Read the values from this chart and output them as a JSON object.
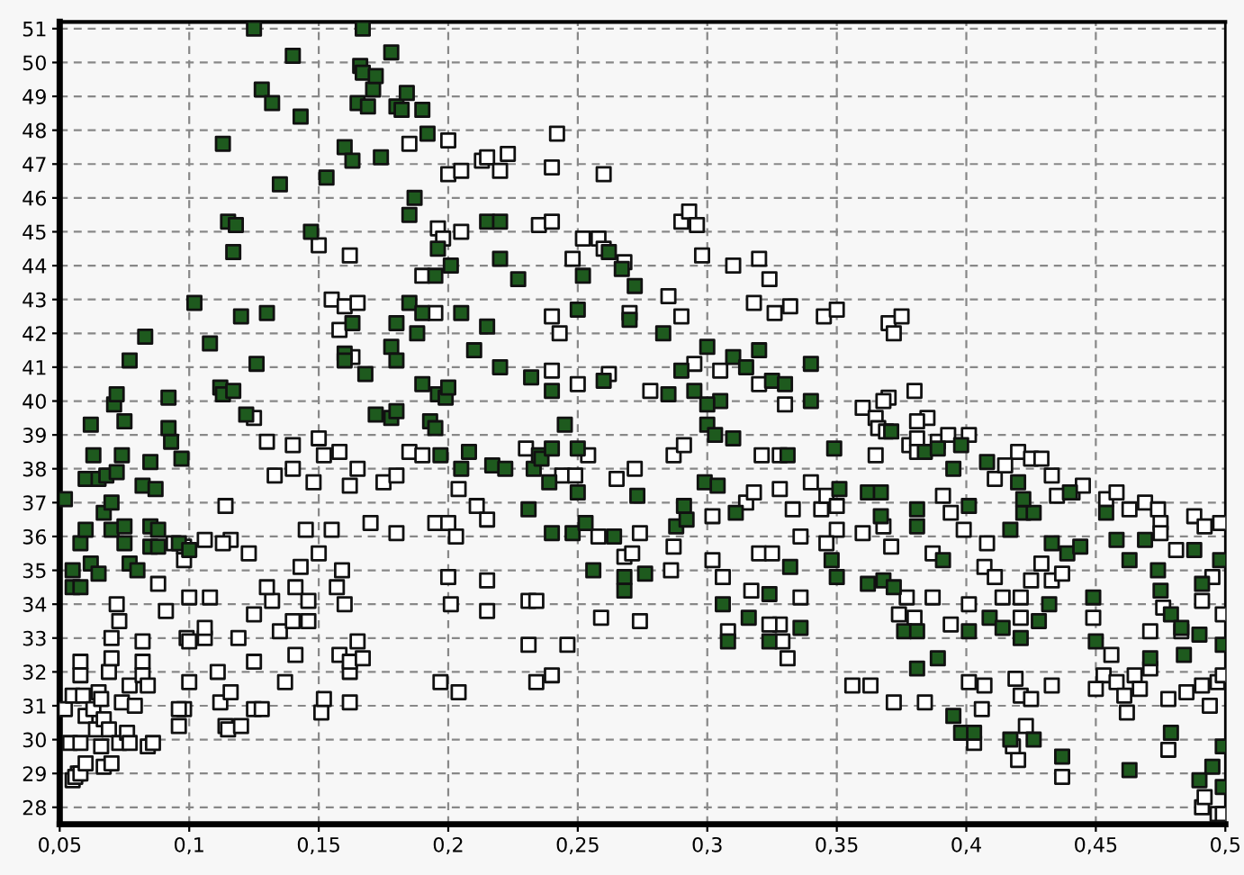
{
  "chart_data": {
    "type": "scatter",
    "marker": "square",
    "grid": true,
    "xlim": [
      0.05,
      0.5
    ],
    "ylim": [
      27.5,
      51.2
    ],
    "xticks": [
      {
        "value": 0.05,
        "label": "0,05"
      },
      {
        "value": 0.1,
        "label": "0,1"
      },
      {
        "value": 0.15,
        "label": "0,15"
      },
      {
        "value": 0.2,
        "label": "0,2"
      },
      {
        "value": 0.25,
        "label": "0,25"
      },
      {
        "value": 0.3,
        "label": "0,3"
      },
      {
        "value": 0.35,
        "label": "0,35"
      },
      {
        "value": 0.4,
        "label": "0,4"
      },
      {
        "value": 0.45,
        "label": "0,45"
      },
      {
        "value": 0.5,
        "label": "0,5"
      }
    ],
    "yticks": [
      28,
      29,
      30,
      31,
      32,
      33,
      34,
      35,
      36,
      37,
      38,
      39,
      40,
      41,
      42,
      43,
      44,
      45,
      46,
      47,
      48,
      49,
      50,
      51
    ],
    "series": [
      {
        "color": "#ffffff",
        "x": [
          0.052,
          0.057,
          0.055,
          0.056,
          0.054,
          0.058,
          0.058,
          0.06,
          0.055,
          0.059,
          0.058,
          0.058,
          0.06,
          0.063,
          0.064,
          0.065,
          0.066,
          0.067,
          0.066,
          0.067,
          0.07,
          0.069,
          0.069,
          0.07,
          0.07,
          0.072,
          0.073,
          0.073,
          0.076,
          0.077,
          0.074,
          0.079,
          0.077,
          0.082,
          0.082,
          0.082,
          0.084,
          0.086,
          0.084,
          0.088,
          0.091,
          0.094,
          0.098,
          0.098,
          0.1,
          0.099,
          0.1,
          0.106,
          0.106,
          0.108,
          0.1,
          0.111,
          0.112,
          0.098,
          0.096,
          0.096,
          0.114,
          0.115,
          0.12,
          0.116,
          0.125,
          0.128,
          0.125,
          0.125,
          0.132,
          0.135,
          0.137,
          0.14,
          0.141,
          0.141,
          0.146,
          0.146,
          0.143,
          0.151,
          0.152,
          0.157,
          0.159,
          0.158,
          0.162,
          0.162,
          0.167,
          0.165,
          0.16,
          0.162,
          0.114,
          0.116,
          0.113,
          0.106,
          0.123,
          0.119,
          0.13,
          0.125,
          0.13,
          0.14,
          0.14,
          0.133,
          0.148,
          0.152,
          0.158,
          0.162,
          0.165,
          0.175,
          0.18,
          0.17,
          0.18,
          0.185,
          0.19,
          0.195,
          0.155,
          0.15,
          0.145,
          0.15,
          0.162,
          0.155,
          0.16,
          0.165,
          0.158,
          0.163,
          0.15,
          0.185,
          0.2,
          0.2,
          0.205,
          0.213,
          0.196,
          0.198,
          0.205,
          0.19,
          0.195,
          0.215,
          0.22,
          0.223,
          0.242,
          0.24,
          0.26,
          0.235,
          0.24,
          0.248,
          0.252,
          0.258,
          0.26,
          0.268,
          0.27,
          0.24,
          0.243,
          0.29,
          0.293,
          0.296,
          0.298,
          0.31,
          0.32,
          0.324,
          0.318,
          0.326,
          0.332,
          0.345,
          0.35,
          0.37,
          0.372,
          0.375,
          0.285,
          0.29,
          0.24,
          0.25,
          0.262,
          0.278,
          0.295,
          0.305,
          0.32,
          0.33,
          0.36,
          0.378,
          0.385,
          0.38,
          0.37,
          0.204,
          0.211,
          0.2,
          0.203,
          0.215,
          0.2,
          0.201,
          0.215,
          0.215,
          0.231,
          0.234,
          0.231,
          0.246,
          0.234,
          0.24,
          0.197,
          0.204,
          0.259,
          0.274,
          0.258,
          0.268,
          0.271,
          0.274,
          0.286,
          0.287,
          0.23,
          0.244,
          0.249,
          0.254,
          0.265,
          0.272,
          0.287,
          0.291,
          0.302,
          0.302,
          0.306,
          0.308,
          0.317,
          0.32,
          0.325,
          0.321,
          0.328,
          0.315,
          0.318,
          0.328,
          0.333,
          0.336,
          0.34,
          0.336,
          0.328,
          0.324,
          0.329,
          0.331,
          0.344,
          0.346,
          0.35,
          0.35,
          0.346,
          0.356,
          0.36,
          0.368,
          0.365,
          0.366,
          0.369,
          0.381,
          0.381,
          0.389,
          0.393,
          0.401,
          0.381,
          0.368,
          0.371,
          0.365,
          0.391,
          0.394,
          0.399,
          0.408,
          0.387,
          0.407,
          0.411,
          0.377,
          0.387,
          0.374,
          0.38,
          0.394,
          0.401,
          0.414,
          0.421,
          0.421,
          0.363,
          0.372,
          0.384,
          0.401,
          0.407,
          0.406,
          0.403,
          0.419,
          0.421,
          0.425,
          0.433,
          0.42,
          0.418,
          0.423,
          0.437,
          0.42,
          0.425,
          0.429,
          0.433,
          0.411,
          0.415,
          0.435,
          0.441,
          0.445,
          0.454,
          0.458,
          0.463,
          0.469,
          0.474,
          0.475,
          0.475,
          0.488,
          0.492,
          0.498,
          0.481,
          0.429,
          0.433,
          0.437,
          0.425,
          0.449,
          0.471,
          0.476,
          0.483,
          0.491,
          0.495,
          0.499,
          0.456,
          0.453,
          0.458,
          0.461,
          0.465,
          0.467,
          0.471,
          0.478,
          0.485,
          0.491,
          0.494,
          0.497,
          0.499,
          0.45,
          0.462,
          0.478,
          0.491,
          0.497,
          0.499,
          0.492
        ],
        "values": [
          30.9,
          29.0,
          28.8,
          28.9,
          29.9,
          29.9,
          29.0,
          29.3,
          31.3,
          31.3,
          32.3,
          31.9,
          30.7,
          30.9,
          30.3,
          31.4,
          31.2,
          30.6,
          29.8,
          29.2,
          29.3,
          30.3,
          32.0,
          33.0,
          32.4,
          34.0,
          33.5,
          29.9,
          30.2,
          29.9,
          31.1,
          31.0,
          31.6,
          32.9,
          32.3,
          31.9,
          29.8,
          29.9,
          31.6,
          34.6,
          33.8,
          35.8,
          35.7,
          35.3,
          34.2,
          33.0,
          32.9,
          33.0,
          33.3,
          34.2,
          31.7,
          32.0,
          31.1,
          30.9,
          30.9,
          30.4,
          30.4,
          30.3,
          30.4,
          31.4,
          30.9,
          30.9,
          33.7,
          32.3,
          34.1,
          33.2,
          31.7,
          33.5,
          34.5,
          32.5,
          33.5,
          34.1,
          35.1,
          30.8,
          31.2,
          34.5,
          35.0,
          32.5,
          32.0,
          32.3,
          32.4,
          32.9,
          34.0,
          31.1,
          36.9,
          35.9,
          35.8,
          35.9,
          35.5,
          33.0,
          34.5,
          39.5,
          38.8,
          38.7,
          38.0,
          37.8,
          37.6,
          38.4,
          38.5,
          37.5,
          38.0,
          37.6,
          37.8,
          36.4,
          36.1,
          38.5,
          38.4,
          36.4,
          36.2,
          35.5,
          36.2,
          44.6,
          44.3,
          43.0,
          42.8,
          42.9,
          42.1,
          41.3,
          38.9,
          47.6,
          47.7,
          46.7,
          46.8,
          47.1,
          45.1,
          44.8,
          45.0,
          43.7,
          42.6,
          47.2,
          46.8,
          47.3,
          47.9,
          46.9,
          46.7,
          45.2,
          45.3,
          44.2,
          44.8,
          44.8,
          44.5,
          44.1,
          42.6,
          42.5,
          42.0,
          45.3,
          45.6,
          45.2,
          44.3,
          44.0,
          44.2,
          43.6,
          42.9,
          42.6,
          42.8,
          42.5,
          42.7,
          42.3,
          42.0,
          42.5,
          43.1,
          42.5,
          40.9,
          40.5,
          40.8,
          40.3,
          41.1,
          40.9,
          40.5,
          39.9,
          39.8,
          38.7,
          39.5,
          40.3,
          40.1,
          37.4,
          36.9,
          36.4,
          36.0,
          36.5,
          34.8,
          34.0,
          34.7,
          33.8,
          34.1,
          34.1,
          32.8,
          32.8,
          31.7,
          31.9,
          31.7,
          31.4,
          33.6,
          33.5,
          36.0,
          35.4,
          35.5,
          36.1,
          35.0,
          35.7,
          38.6,
          37.8,
          37.8,
          38.4,
          37.7,
          38.0,
          38.4,
          38.7,
          36.6,
          35.3,
          34.8,
          33.2,
          34.4,
          35.5,
          35.5,
          38.4,
          38.4,
          37.0,
          37.3,
          37.4,
          36.8,
          36.0,
          37.6,
          34.2,
          33.4,
          33.4,
          32.9,
          32.4,
          36.8,
          37.2,
          36.9,
          36.2,
          35.8,
          31.6,
          36.1,
          40.0,
          39.5,
          39.2,
          39.1,
          39.4,
          38.9,
          38.8,
          39.0,
          39.0,
          38.5,
          36.3,
          35.7,
          38.4,
          37.2,
          36.7,
          36.2,
          35.8,
          35.5,
          35.1,
          34.8,
          34.2,
          34.2,
          33.7,
          33.6,
          33.4,
          34.0,
          34.2,
          34.2,
          33.6,
          31.6,
          31.1,
          31.1,
          31.7,
          31.6,
          30.9,
          29.9,
          31.8,
          31.3,
          31.2,
          31.6,
          29.4,
          29.8,
          30.4,
          28.9,
          38.5,
          38.3,
          38.3,
          37.8,
          37.7,
          38.1,
          37.2,
          37.3,
          37.5,
          37.1,
          37.3,
          36.8,
          37.0,
          36.8,
          36.4,
          36.1,
          36.6,
          36.3,
          36.4,
          35.6,
          35.2,
          34.7,
          34.9,
          34.7,
          33.6,
          33.2,
          33.9,
          33.2,
          34.1,
          34.8,
          33.7,
          32.5,
          31.9,
          31.7,
          31.3,
          31.9,
          31.5,
          32.1,
          31.2,
          31.4,
          31.6,
          31.0,
          31.7,
          31.9,
          31.5,
          30.8,
          29.7,
          28.0,
          27.8,
          27.8,
          28.3
        ]
      },
      {
        "color": "#1e5a1e",
        "x": [
          0.052,
          0.055,
          0.058,
          0.055,
          0.058,
          0.06,
          0.062,
          0.065,
          0.06,
          0.065,
          0.067,
          0.07,
          0.068,
          0.072,
          0.07,
          0.075,
          0.075,
          0.077,
          0.08,
          0.082,
          0.085,
          0.087,
          0.085,
          0.088,
          0.085,
          0.088,
          0.093,
          0.097,
          0.096,
          0.1,
          0.063,
          0.074,
          0.075,
          0.071,
          0.072,
          0.077,
          0.083,
          0.092,
          0.092,
          0.062,
          0.102,
          0.108,
          0.112,
          0.113,
          0.117,
          0.115,
          0.118,
          0.117,
          0.113,
          0.12,
          0.13,
          0.126,
          0.122,
          0.128,
          0.132,
          0.125,
          0.14,
          0.143,
          0.147,
          0.153,
          0.135,
          0.16,
          0.163,
          0.165,
          0.166,
          0.167,
          0.167,
          0.169,
          0.171,
          0.172,
          0.174,
          0.178,
          0.18,
          0.182,
          0.184,
          0.19,
          0.192,
          0.187,
          0.185,
          0.16,
          0.16,
          0.163,
          0.168,
          0.172,
          0.178,
          0.18,
          0.18,
          0.185,
          0.19,
          0.188,
          0.19,
          0.193,
          0.195,
          0.196,
          0.199,
          0.2,
          0.196,
          0.195,
          0.201,
          0.205,
          0.178,
          0.18,
          0.215,
          0.22,
          0.22,
          0.227,
          0.215,
          0.21,
          0.22,
          0.232,
          0.24,
          0.245,
          0.25,
          0.25,
          0.233,
          0.235,
          0.25,
          0.252,
          0.262,
          0.267,
          0.272,
          0.27,
          0.283,
          0.26,
          0.285,
          0.29,
          0.295,
          0.305,
          0.3,
          0.31,
          0.3,
          0.3,
          0.31,
          0.315,
          0.32,
          0.325,
          0.33,
          0.34,
          0.34,
          0.197,
          0.205,
          0.208,
          0.217,
          0.222,
          0.231,
          0.236,
          0.24,
          0.239,
          0.24,
          0.248,
          0.253,
          0.256,
          0.264,
          0.268,
          0.268,
          0.276,
          0.273,
          0.288,
          0.291,
          0.292,
          0.299,
          0.304,
          0.306,
          0.308,
          0.311,
          0.316,
          0.324,
          0.324,
          0.332,
          0.336,
          0.331,
          0.349,
          0.351,
          0.348,
          0.35,
          0.362,
          0.362,
          0.303,
          0.371,
          0.367,
          0.367,
          0.381,
          0.381,
          0.368,
          0.372,
          0.376,
          0.381,
          0.389,
          0.384,
          0.389,
          0.395,
          0.398,
          0.401,
          0.408,
          0.417,
          0.422,
          0.426,
          0.42,
          0.391,
          0.401,
          0.409,
          0.414,
          0.421,
          0.428,
          0.432,
          0.433,
          0.439,
          0.444,
          0.449,
          0.45,
          0.458,
          0.463,
          0.454,
          0.469,
          0.474,
          0.475,
          0.479,
          0.483,
          0.484,
          0.49,
          0.491,
          0.488,
          0.498,
          0.499,
          0.395,
          0.398,
          0.403,
          0.417,
          0.426,
          0.437,
          0.463,
          0.479,
          0.49,
          0.495,
          0.499,
          0.499,
          0.471,
          0.422,
          0.381,
          0.44
        ],
        "values": [
          37.1,
          34.5,
          34.5,
          35.0,
          35.8,
          36.2,
          35.2,
          34.9,
          37.7,
          37.7,
          36.7,
          36.2,
          37.8,
          37.9,
          37.0,
          36.3,
          35.8,
          35.2,
          35.0,
          37.5,
          38.2,
          37.4,
          36.3,
          36.2,
          35.7,
          35.7,
          38.8,
          38.3,
          35.8,
          35.6,
          38.4,
          38.4,
          39.4,
          39.9,
          40.2,
          41.2,
          41.9,
          40.1,
          39.2,
          39.3,
          42.9,
          41.7,
          40.4,
          40.2,
          40.3,
          45.3,
          45.2,
          44.4,
          47.6,
          42.5,
          42.6,
          41.1,
          39.6,
          49.2,
          48.8,
          51.0,
          50.2,
          48.4,
          45.0,
          46.6,
          46.4,
          47.5,
          47.1,
          48.8,
          49.9,
          49.7,
          51.0,
          48.7,
          49.2,
          49.6,
          47.2,
          50.3,
          48.7,
          48.6,
          49.1,
          48.6,
          47.9,
          46.0,
          45.5,
          41.4,
          41.2,
          42.3,
          40.8,
          39.6,
          41.6,
          41.2,
          42.3,
          42.9,
          42.6,
          42.0,
          40.5,
          39.4,
          39.2,
          40.2,
          40.1,
          40.4,
          44.5,
          43.7,
          44.0,
          42.6,
          39.5,
          39.7,
          45.3,
          45.3,
          44.2,
          43.6,
          42.2,
          41.5,
          41.0,
          40.7,
          40.3,
          39.3,
          38.6,
          37.3,
          38.0,
          38.4,
          42.7,
          43.7,
          44.4,
          43.9,
          43.4,
          42.4,
          42.0,
          40.6,
          40.2,
          40.9,
          40.3,
          40.0,
          39.3,
          38.9,
          39.9,
          41.6,
          41.3,
          41.0,
          41.5,
          40.6,
          40.5,
          40.0,
          41.1,
          38.4,
          38.0,
          38.5,
          38.1,
          38.0,
          36.8,
          38.3,
          38.6,
          37.6,
          36.1,
          36.1,
          36.4,
          35.0,
          36.0,
          34.8,
          34.4,
          34.9,
          37.2,
          36.3,
          36.9,
          36.5,
          37.6,
          37.5,
          34.0,
          32.9,
          36.7,
          33.6,
          34.3,
          32.9,
          35.1,
          33.3,
          38.4,
          38.6,
          37.4,
          35.3,
          34.8,
          37.3,
          34.6,
          39.0,
          39.1,
          37.3,
          36.6,
          36.8,
          36.3,
          34.7,
          34.5,
          33.2,
          33.2,
          32.4,
          38.5,
          38.6,
          38.0,
          38.7,
          36.9,
          38.2,
          36.2,
          36.7,
          36.7,
          37.6,
          35.3,
          33.2,
          33.6,
          33.3,
          33.0,
          33.5,
          34.0,
          35.8,
          35.5,
          35.7,
          34.2,
          32.9,
          35.9,
          35.3,
          36.7,
          35.9,
          35.0,
          34.4,
          33.7,
          33.3,
          32.5,
          33.1,
          34.6,
          35.6,
          35.3,
          32.8,
          30.7,
          30.2,
          30.2,
          30.0,
          30.0,
          29.5,
          29.1,
          30.2,
          28.8,
          29.2,
          29.8,
          28.6,
          32.4,
          37.1,
          32.1,
          37.3
        ]
      }
    ]
  }
}
